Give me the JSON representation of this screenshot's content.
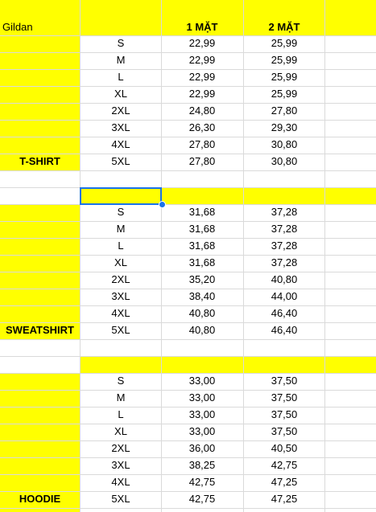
{
  "header": {
    "brand": "Gildan",
    "col_front": "1 MẶT",
    "col_both": "2 MẶT"
  },
  "tshirt": {
    "label": "T-SHIRT",
    "rows": [
      {
        "size": "S",
        "one": "22,99",
        "two": "25,99"
      },
      {
        "size": "M",
        "one": "22,99",
        "two": "25,99"
      },
      {
        "size": "L",
        "one": "22,99",
        "two": "25,99"
      },
      {
        "size": "XL",
        "one": "22,99",
        "two": "25,99"
      },
      {
        "size": "2XL",
        "one": "24,80",
        "two": "27,80"
      },
      {
        "size": "3XL",
        "one": "26,30",
        "two": "29,30"
      },
      {
        "size": "4XL",
        "one": "27,80",
        "two": "30,80"
      },
      {
        "size": "5XL",
        "one": "27,80",
        "two": "30,80"
      }
    ]
  },
  "sweatshirt": {
    "label": "SWEATSHIRT",
    "rows": [
      {
        "size": "S",
        "one": "31,68",
        "two": "37,28"
      },
      {
        "size": "M",
        "one": "31,68",
        "two": "37,28"
      },
      {
        "size": "L",
        "one": "31,68",
        "two": "37,28"
      },
      {
        "size": "XL",
        "one": "31,68",
        "two": "37,28"
      },
      {
        "size": "2XL",
        "one": "35,20",
        "two": "40,80"
      },
      {
        "size": "3XL",
        "one": "38,40",
        "two": "44,00"
      },
      {
        "size": "4XL",
        "one": "40,80",
        "two": "46,40"
      },
      {
        "size": "5XL",
        "one": "40,80",
        "two": "46,40"
      }
    ]
  },
  "hoodie": {
    "label": "HOODIE",
    "rows": [
      {
        "size": "S",
        "one": "33,00",
        "two": "37,50"
      },
      {
        "size": "M",
        "one": "33,00",
        "two": "37,50"
      },
      {
        "size": "L",
        "one": "33,00",
        "two": "37,50"
      },
      {
        "size": "XL",
        "one": "33,00",
        "two": "37,50"
      },
      {
        "size": "2XL",
        "one": "36,00",
        "two": "40,50"
      },
      {
        "size": "3XL",
        "one": "38,25",
        "two": "42,75"
      },
      {
        "size": "4XL",
        "one": "42,75",
        "two": "47,25"
      },
      {
        "size": "5XL",
        "one": "42,75",
        "two": "47,25"
      }
    ]
  },
  "colors": {
    "highlight": "#ffff00",
    "grid": "#dadada",
    "selection": "#1a73e8"
  }
}
